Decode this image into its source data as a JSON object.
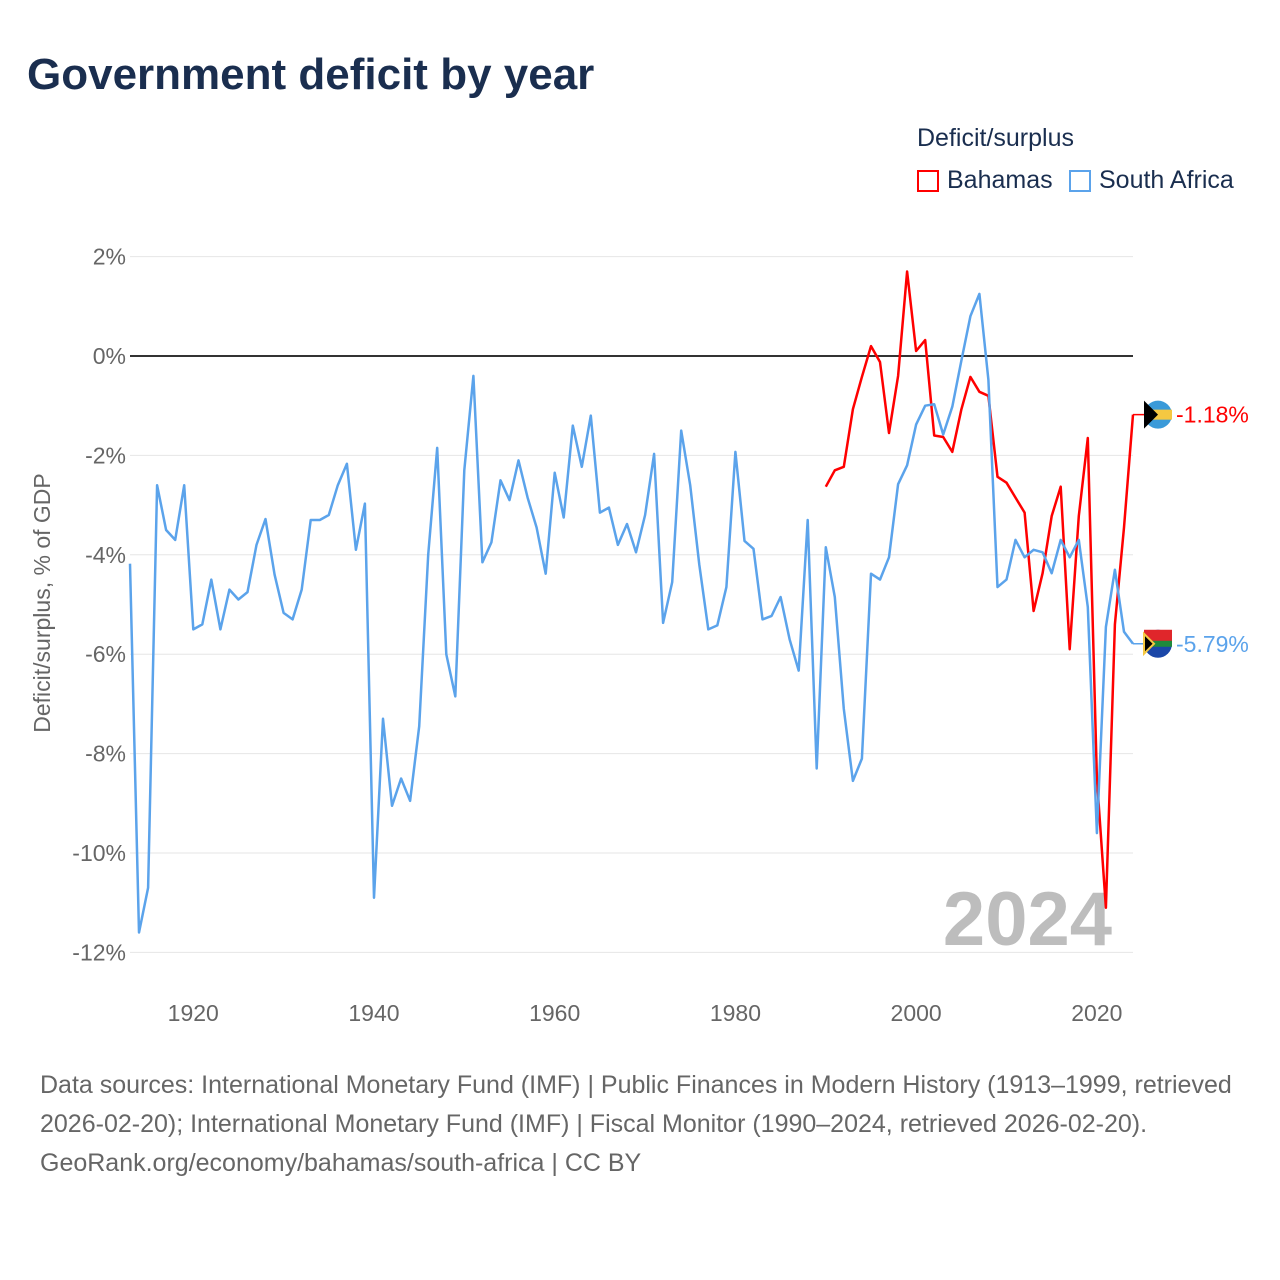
{
  "title": "Government deficit by year",
  "legend": {
    "title": "Deficit/surplus",
    "items": [
      "Bahamas",
      "South Africa"
    ]
  },
  "footer": {
    "sources": "Data sources: International Monetary Fund (IMF) | Public Finances in Modern History (1913–1999, retrieved 2026-02-20); International Monetary Fund (IMF) | Fiscal Monitor (1990–2024, retrieved 2026-02-20).",
    "credit": "GeoRank.org/economy/bahamas/south-africa | CC BY"
  },
  "chart_data": {
    "type": "line",
    "title": "Government deficit by year",
    "ylabel": "Deficit/surplus, % of GDP",
    "xlabel": "",
    "year_watermark": "2024",
    "ylim": [
      -12.5,
      2.2
    ],
    "xlim": [
      1913,
      2024
    ],
    "yticks": [
      2,
      0,
      -2,
      -4,
      -6,
      -8,
      -10,
      -12
    ],
    "ytick_labels": [
      "2%",
      "0%",
      "-2%",
      "-4%",
      "-6%",
      "-8%",
      "-10%",
      "-12%"
    ],
    "xticks": [
      1920,
      1940,
      1960,
      1980,
      2000,
      2020
    ],
    "xtick_labels": [
      "1920",
      "1940",
      "1960",
      "1980",
      "2000",
      "2020"
    ],
    "legend_position": "top-right",
    "series": [
      {
        "name": "Bahamas",
        "color": "#ff0000",
        "end_label": "-1.18%",
        "start_year": 1990,
        "values": [
          -2.63,
          -2.3,
          -2.23,
          -1.07,
          -0.42,
          0.2,
          -0.12,
          -1.55,
          -0.4,
          1.7,
          0.1,
          0.32,
          -1.6,
          -1.63,
          -1.93,
          -1.08,
          -0.42,
          -0.72,
          -0.8,
          -2.43,
          -2.55,
          -2.85,
          -3.15,
          -5.13,
          -4.37,
          -3.22,
          -2.63,
          -5.9,
          -3.22,
          -1.65,
          -8.5,
          -11.1,
          -5.4,
          -3.45,
          -1.18
        ]
      },
      {
        "name": "South Africa",
        "color": "#5ba3eb",
        "end_label": "-5.79%",
        "start_year": 1913,
        "values": [
          -4.18,
          -11.6,
          -10.7,
          -2.6,
          -3.5,
          -3.7,
          -2.6,
          -5.5,
          -5.4,
          -4.5,
          -5.5,
          -4.7,
          -4.9,
          -4.75,
          -3.8,
          -3.28,
          -4.4,
          -5.17,
          -5.3,
          -4.7,
          -3.3,
          -3.3,
          -3.2,
          -2.6,
          -2.17,
          -3.9,
          -2.97,
          -10.9,
          -7.3,
          -9.05,
          -8.5,
          -8.95,
          -7.45,
          -4.0,
          -1.85,
          -6.0,
          -6.85,
          -2.3,
          -0.4,
          -4.15,
          -3.75,
          -2.5,
          -2.9,
          -2.1,
          -2.85,
          -3.45,
          -4.38,
          -2.35,
          -3.25,
          -1.4,
          -2.23,
          -1.2,
          -3.15,
          -3.05,
          -3.8,
          -3.38,
          -3.95,
          -3.2,
          -1.97,
          -5.37,
          -4.55,
          -1.5,
          -2.6,
          -4.2,
          -5.5,
          -5.42,
          -4.65,
          -1.93,
          -3.72,
          -3.88,
          -5.3,
          -5.23,
          -4.85,
          -5.7,
          -6.33,
          -3.3,
          -8.3,
          -3.85,
          -4.85,
          -7.1,
          -8.55,
          -8.1,
          -4.38,
          -4.5,
          -4.05,
          -2.58,
          -2.2,
          -1.38,
          -1.0,
          -0.97,
          -1.58,
          -1.02,
          -0.1,
          0.8,
          1.25,
          -0.48,
          -4.65,
          -4.5,
          -3.7,
          -4.05,
          -3.9,
          -3.95,
          -4.37,
          -3.7,
          -4.05,
          -3.7,
          -5.05,
          -9.6,
          -5.45,
          -4.3,
          -5.55,
          -5.79
        ]
      }
    ]
  }
}
